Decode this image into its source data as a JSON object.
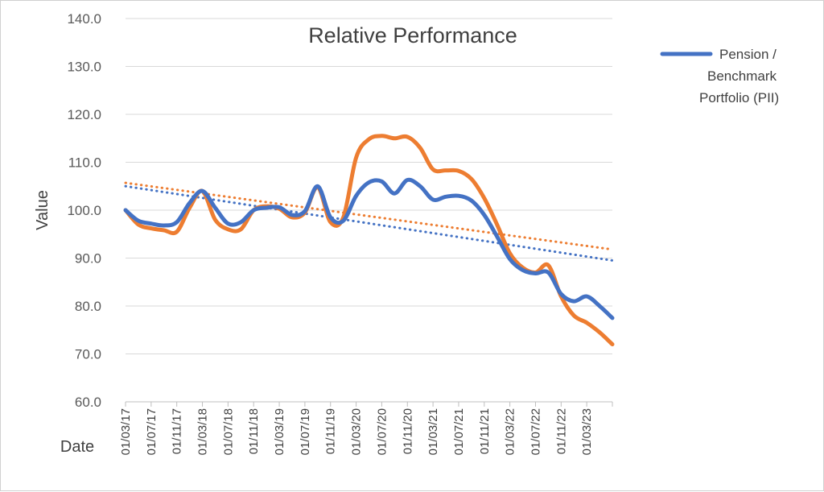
{
  "chart_data": {
    "type": "line",
    "title": "Relative Performance",
    "xlabel": "Date",
    "ylabel": "Value",
    "ylim": [
      60,
      140
    ],
    "yticks": [
      "60.0",
      "70.0",
      "80.0",
      "90.0",
      "100.0",
      "110.0",
      "120.0",
      "130.0",
      "140.0"
    ],
    "grid": "horizontal",
    "legend_position": "top-right",
    "x_tick_labels": [
      "01/03/17",
      "01/07/17",
      "01/11/17",
      "01/03/18",
      "01/07/18",
      "01/11/18",
      "01/03/19",
      "01/07/19",
      "01/11/19",
      "01/03/20",
      "01/07/20",
      "01/11/20",
      "01/03/21",
      "01/07/21",
      "01/11/21",
      "01/03/22",
      "01/07/22",
      "01/11/22",
      "01/03/23"
    ],
    "x": [
      "2017-03",
      "2017-05",
      "2017-07",
      "2017-09",
      "2017-11",
      "2018-01",
      "2018-03",
      "2018-05",
      "2018-07",
      "2018-09",
      "2018-11",
      "2019-01",
      "2019-03",
      "2019-05",
      "2019-07",
      "2019-09",
      "2019-11",
      "2020-01",
      "2020-03",
      "2020-05",
      "2020-07",
      "2020-09",
      "2020-11",
      "2021-01",
      "2021-03",
      "2021-05",
      "2021-07",
      "2021-09",
      "2021-11",
      "2022-01",
      "2022-03",
      "2022-05",
      "2022-07",
      "2022-09",
      "2022-11",
      "2023-01",
      "2023-03",
      "2023-05",
      "2023-06"
    ],
    "series": [
      {
        "name": "Pension / Benchmark Portfolio (PII)",
        "color": "#4472C4",
        "values": [
          100.0,
          97.8,
          97.2,
          96.8,
          97.5,
          101.5,
          104.0,
          100.5,
          97.2,
          97.5,
          100.0,
          100.5,
          100.6,
          99.0,
          99.8,
          105.0,
          98.5,
          97.8,
          103.0,
          105.8,
          106.0,
          103.5,
          106.3,
          105.0,
          102.2,
          102.8,
          103.0,
          102.0,
          99.0,
          94.5,
          89.8,
          87.5,
          86.8,
          87.0,
          82.5,
          81.0,
          82.0,
          80.0,
          77.5
        ]
      },
      {
        "name": "",
        "color": "#ED7D31",
        "values": [
          100.0,
          97.0,
          96.2,
          95.8,
          95.5,
          100.5,
          104.0,
          98.0,
          96.0,
          96.0,
          100.0,
          100.8,
          100.3,
          98.5,
          99.5,
          104.8,
          97.5,
          98.5,
          111.0,
          114.8,
          115.5,
          115.0,
          115.3,
          113.0,
          108.5,
          108.3,
          108.2,
          106.5,
          102.5,
          97.0,
          91.0,
          88.0,
          87.0,
          88.5,
          82.0,
          78.0,
          76.5,
          74.5,
          72.0
        ]
      }
    ],
    "trendlines": [
      {
        "series": "Pension / Benchmark Portfolio (PII)",
        "type": "linear",
        "color": "#4472C4",
        "start": 105.0,
        "end": 89.5
      },
      {
        "series": "orange",
        "type": "linear",
        "color": "#ED7D31",
        "start": 105.7,
        "end": 91.8
      }
    ]
  }
}
